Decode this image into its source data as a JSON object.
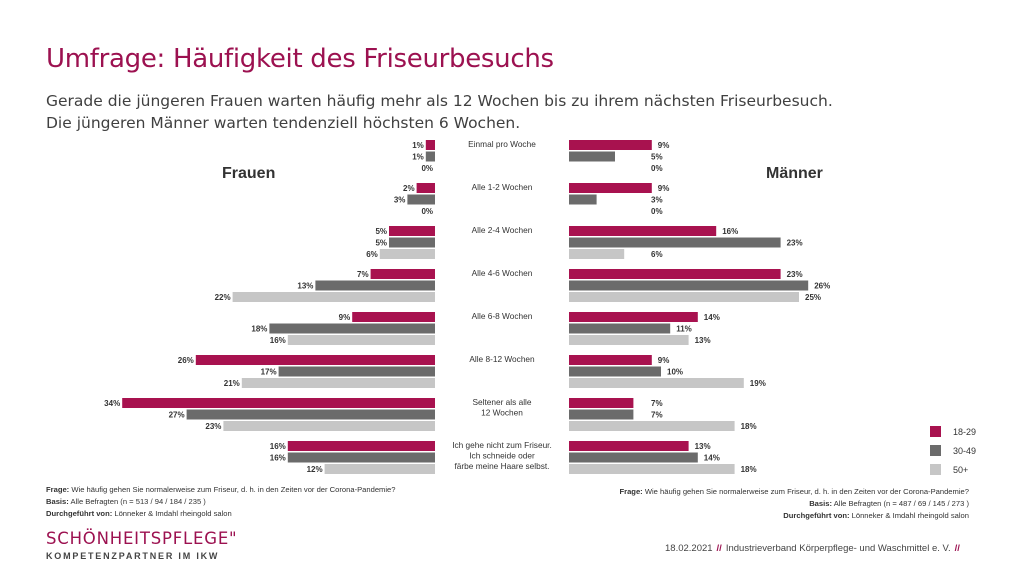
{
  "title": "Umfrage: Häufigkeit des Friseurbesuchs",
  "subtitle_lines": [
    "Gerade die jüngeren Frauen warten häufig mehr als 12 Wochen bis zu ihrem nächsten Friseurbesuch.",
    "Die jüngeren Männer warten tendenziell höchsten 6 Wochen."
  ],
  "panels": {
    "left": "Frauen",
    "right": "Männer"
  },
  "colors": {
    "18-29": "#a8124f",
    "30-49": "#6b6b6b",
    "50+": "#c6c6c6",
    "accent": "#9c1150"
  },
  "chart_data": {
    "type": "bar",
    "orientation": "horizontal-butterfly",
    "categories": [
      [
        "Einmal pro Woche"
      ],
      [
        "Alle 1-2 Wochen"
      ],
      [
        "Alle 2-4 Wochen"
      ],
      [
        "Alle 4-6 Wochen"
      ],
      [
        "Alle 6-8 Wochen"
      ],
      [
        "Alle 8-12 Wochen"
      ],
      [
        "Seltener als alle",
        "12 Wochen"
      ],
      [
        "Ich gehe nicht zum Friseur.",
        "Ich schneide oder",
        "färbe meine Haare selbst."
      ]
    ],
    "legend": [
      "18-29",
      "30-49",
      "50+"
    ],
    "legend_position": "right",
    "frauen": {
      "18-29": [
        1,
        2,
        5,
        7,
        9,
        26,
        34,
        16
      ],
      "30-49": [
        1,
        3,
        5,
        13,
        18,
        17,
        27,
        16
      ],
      "50+": [
        0,
        0,
        6,
        22,
        16,
        21,
        23,
        12
      ]
    },
    "maenner": {
      "18-29": [
        9,
        9,
        16,
        23,
        14,
        9,
        7,
        13
      ],
      "30-49": [
        5,
        3,
        23,
        26,
        11,
        10,
        7,
        14
      ],
      "50+": [
        0,
        0,
        6,
        25,
        13,
        19,
        18,
        18
      ]
    },
    "value_suffix": "%"
  },
  "footnotes": {
    "left": {
      "frage_label": "Frage:",
      "frage": "Wie häufig gehen Sie normalerweise zum Friseur, d. h. in den Zeiten vor der Corona-Pandemie?",
      "basis_label": "Basis:",
      "basis": "Alle Befragten (n = 513 / 94 / 184 / 235 )",
      "durch_label": "Durchgeführt von:",
      "durch": "Lönneker & Imdahl rheingold salon"
    },
    "right": {
      "frage_label": "Frage:",
      "frage": "Wie häufig gehen Sie normalerweise zum Friseur, d. h. in den Zeiten vor der Corona-Pandemie?",
      "basis_label": "Basis:",
      "basis": "Alle Befragten (n = 487 / 69 / 145 / 273 )",
      "durch_label": "Durchgeführt von:",
      "durch": "Lönneker & Imdahl rheingold salon"
    }
  },
  "logo": {
    "main": "SCHÖNHEITSPFLEGE\"",
    "sub": "KOMPETENZPARTNER IM IKW"
  },
  "footer": {
    "date": "18.02.2021",
    "sep": "//",
    "org": "Industrieverband Körperpflege- und Waschmittel e. V."
  }
}
